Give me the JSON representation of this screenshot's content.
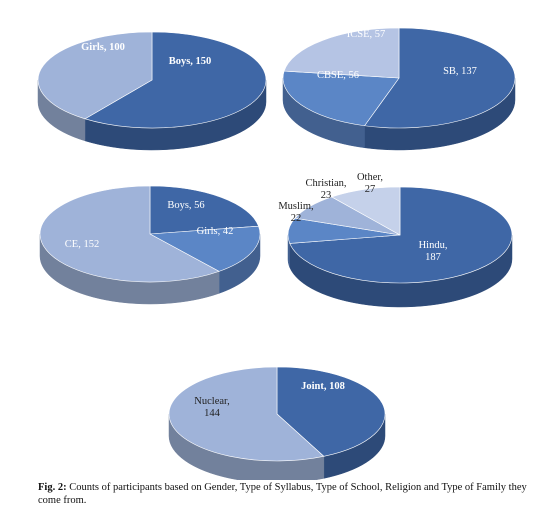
{
  "caption": {
    "label": "Fig. 2:",
    "text": "Counts of participants based on Gender, Type of Syllabus, Type of School, Religion and Type of Family they come from."
  },
  "colors": {
    "dark": "#3f67a6",
    "medium": "#5b86c6",
    "light": "#9fb3d9",
    "pale": "#b5c4e4",
    "very_pale": "#c5d1ea"
  },
  "chart_data": [
    {
      "type": "pie",
      "style": "3d",
      "slices": [
        {
          "name": "Boys",
          "value": 150,
          "label_lines": [
            "Boys, 150"
          ],
          "color": "#3f67a6",
          "text_color": "#ffffff",
          "bold": true
        },
        {
          "name": "Girls",
          "value": 100,
          "label_lines": [
            "Girls, 100"
          ],
          "color": "#9fb3d9",
          "text_color": "#ffffff",
          "bold": true
        }
      ]
    },
    {
      "type": "pie",
      "style": "3d",
      "slices": [
        {
          "name": "SB",
          "value": 137,
          "label_lines": [
            "SB, 137"
          ],
          "color": "#3f67a6",
          "text_color": "#ffffff",
          "bold": false
        },
        {
          "name": "CBSE",
          "value": 56,
          "label_lines": [
            "CBSE, 56"
          ],
          "color": "#5b86c6",
          "text_color": "#ffffff",
          "bold": false
        },
        {
          "name": "ICSE",
          "value": 57,
          "label_lines": [
            "ICSE, 57"
          ],
          "color": "#b5c4e4",
          "text_color": "#ffffff",
          "bold": false
        }
      ]
    },
    {
      "type": "pie",
      "style": "3d",
      "slices": [
        {
          "name": "Boys",
          "value": 56,
          "label_lines": [
            "Boys, 56"
          ],
          "color": "#3f67a6",
          "text_color": "#ffffff",
          "bold": false
        },
        {
          "name": "Girls",
          "value": 42,
          "label_lines": [
            "Girls, 42"
          ],
          "color": "#5b86c6",
          "text_color": "#ffffff",
          "bold": false
        },
        {
          "name": "CE",
          "value": 152,
          "label_lines": [
            "CE, 152"
          ],
          "color": "#9fb3d9",
          "text_color": "#ffffff",
          "bold": false
        }
      ]
    },
    {
      "type": "pie",
      "style": "3d",
      "slices": [
        {
          "name": "Hindu",
          "value": 187,
          "label_lines": [
            "Hindu,",
            "187"
          ],
          "color": "#3f67a6",
          "text_color": "#ffffff",
          "bold": false
        },
        {
          "name": "Muslim",
          "value": 22,
          "label_lines": [
            "Muslim,",
            "22"
          ],
          "color": "#5b86c6",
          "text_color": "#222222",
          "bold": false
        },
        {
          "name": "Christian",
          "value": 23,
          "label_lines": [
            "Christian,",
            "23"
          ],
          "color": "#9fb3d9",
          "text_color": "#222222",
          "bold": false
        },
        {
          "name": "Other",
          "value": 27,
          "label_lines": [
            "Other,",
            "27"
          ],
          "color": "#c5d1ea",
          "text_color": "#222222",
          "bold": false
        }
      ]
    },
    {
      "type": "pie",
      "style": "3d",
      "slices": [
        {
          "name": "Joint",
          "value": 108,
          "label_lines": [
            "Joint, 108"
          ],
          "color": "#3f67a6",
          "text_color": "#ffffff",
          "bold": true
        },
        {
          "name": "Nuclear",
          "value": 144,
          "label_lines": [
            "Nuclear,",
            "144"
          ],
          "color": "#9fb3d9",
          "text_color": "#222222",
          "bold": false
        }
      ]
    }
  ]
}
